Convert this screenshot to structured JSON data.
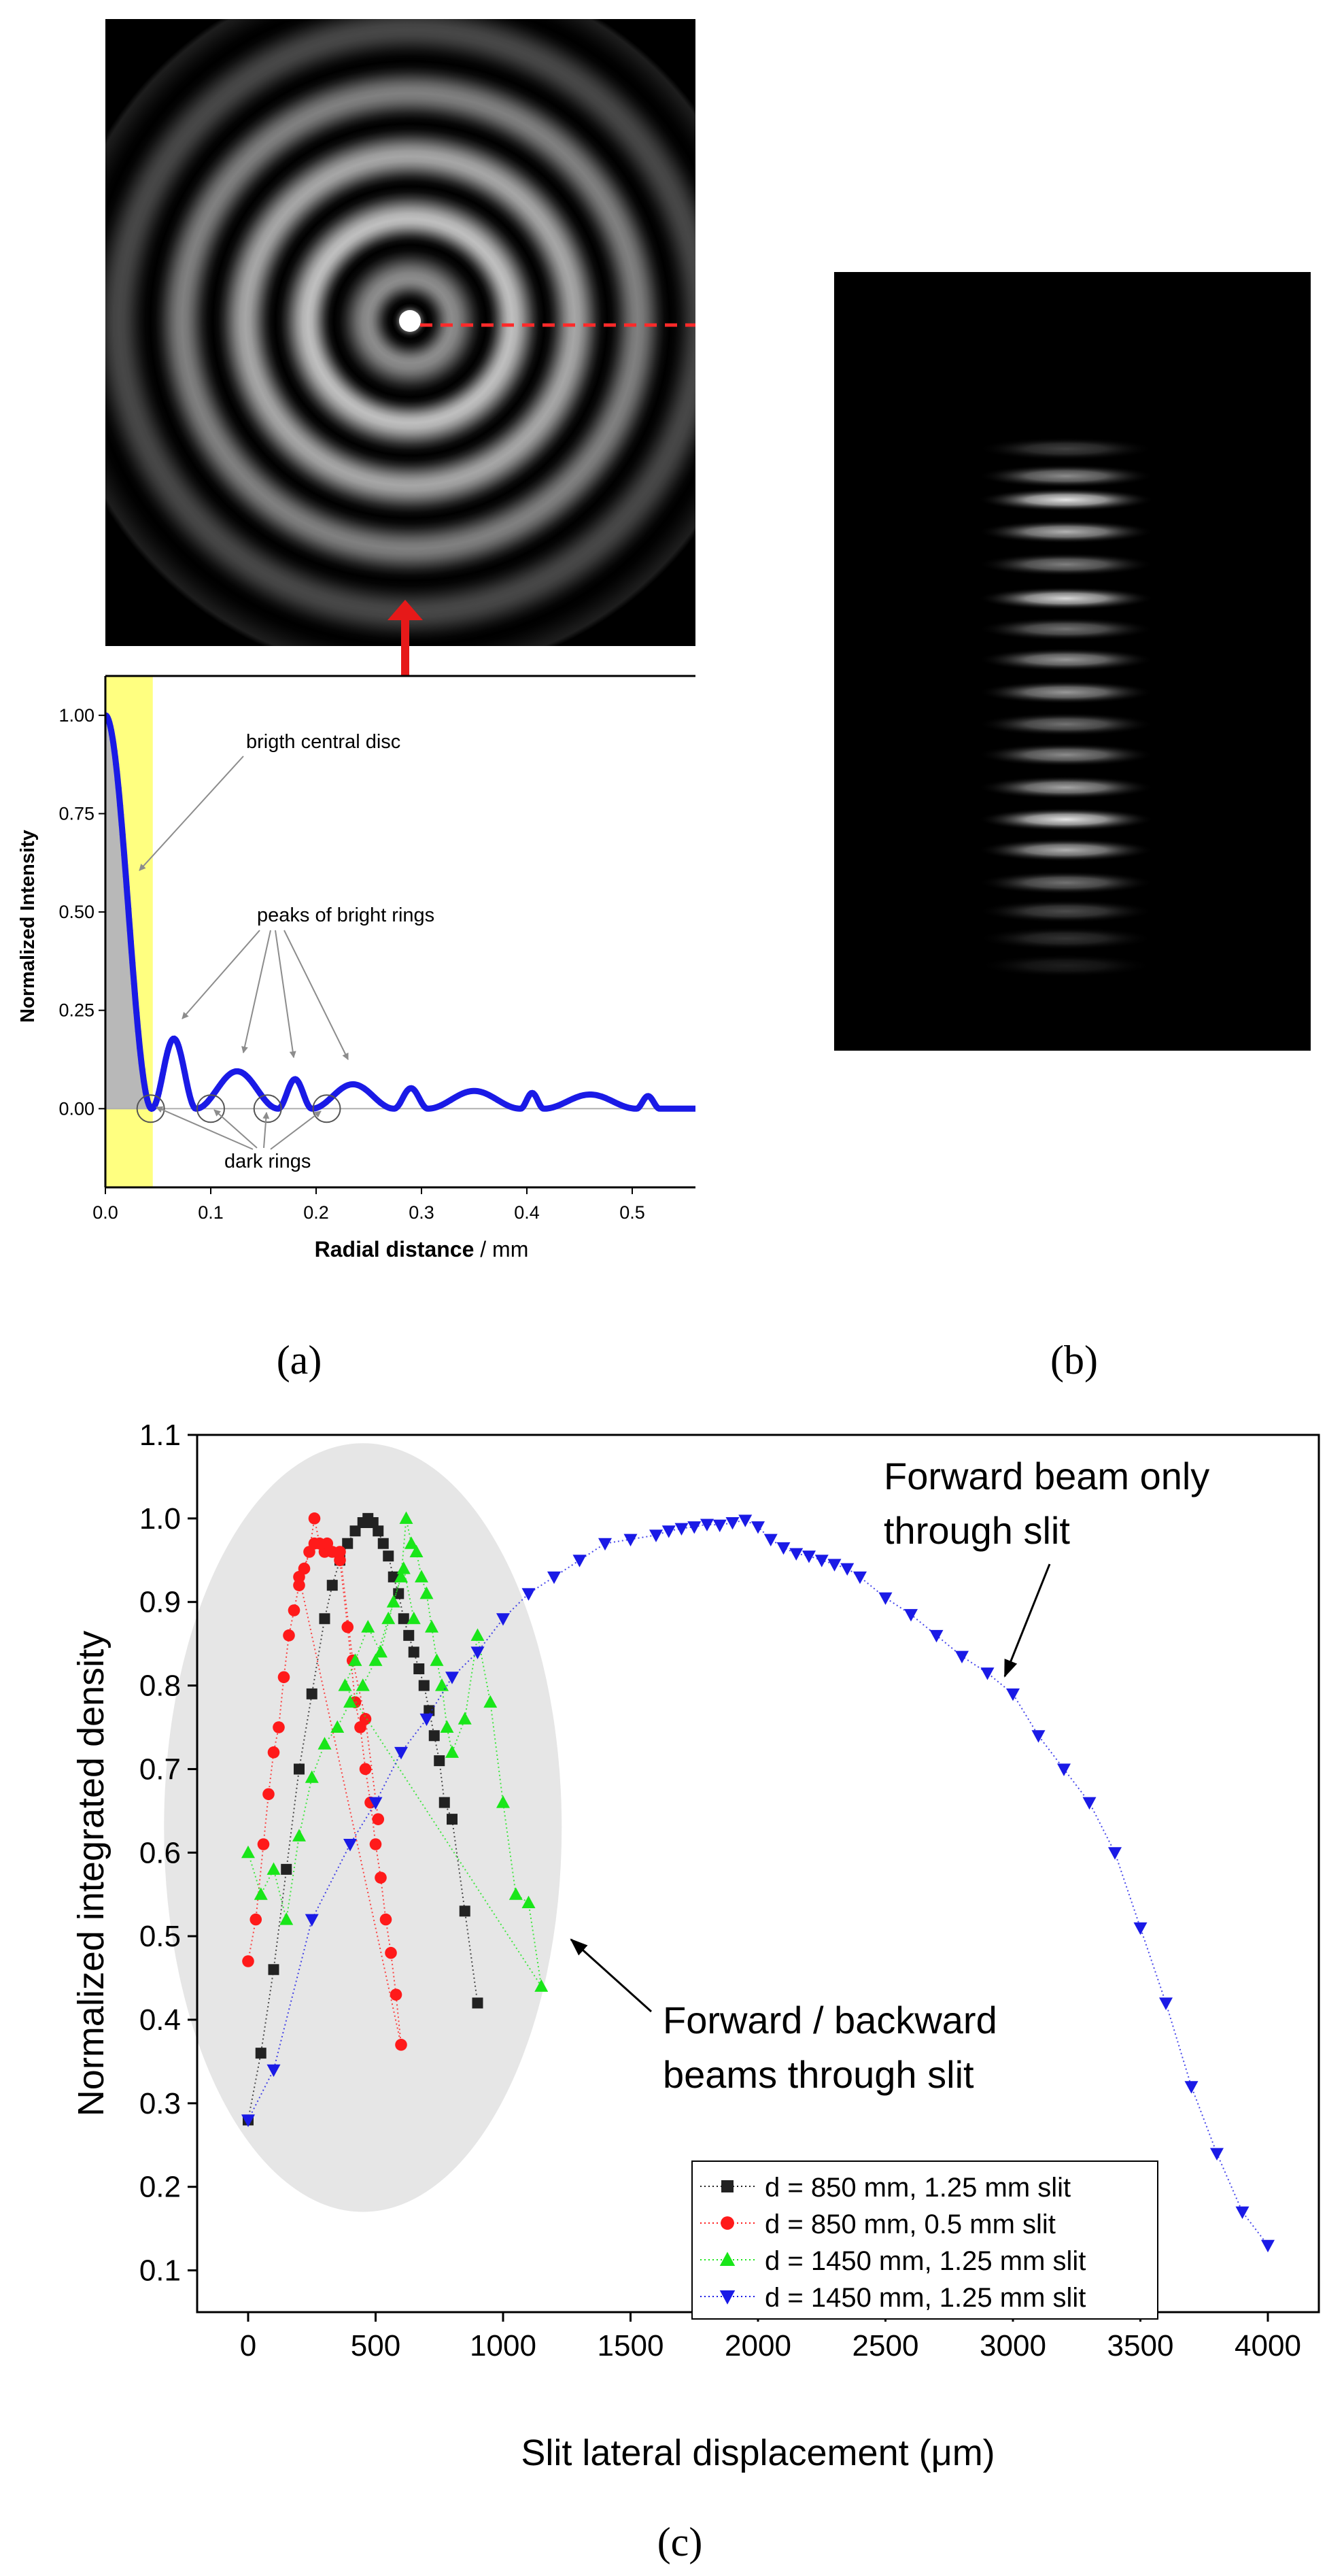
{
  "panel_labels": {
    "a": "(a)",
    "b": "(b)",
    "c": "(c)"
  },
  "colors": {
    "blue": "#1a1ae6",
    "red": "#ff1a1a",
    "green": "#19e619",
    "black": "#222222",
    "yellow": "#ffff80",
    "ellipse": "#e6e6e6",
    "arrow_red": "#e61919"
  },
  "chart_data": [
    {
      "type": "line",
      "panel": "(a)",
      "xlabel": "Radial distance",
      "xlabel_unit": " / mm",
      "ylabel": "Normalized Intensity",
      "xlim": [
        0,
        0.56
      ],
      "ylim": [
        -0.2,
        1.1
      ],
      "xticks": [
        0.0,
        0.1,
        0.2,
        0.3,
        0.4,
        0.5
      ],
      "xtick_labels": [
        "0.0",
        "0.1",
        "0.2",
        "0.3",
        "0.4",
        "0.5"
      ],
      "yticks": [
        0.0,
        0.25,
        0.5,
        0.75,
        1.0
      ],
      "ytick_labels": [
        "0.00",
        "0.25",
        "0.50",
        "0.75",
        "1.00"
      ],
      "highlight_xrange": [
        0.0,
        0.045
      ],
      "profile": {
        "first_zero": 0.044,
        "ring_peaks": [
          0.065,
          0.125,
          0.18,
          0.235,
          0.29,
          0.35,
          0.405,
          0.46,
          0.515
        ],
        "peak_values": [
          0.178,
          0.095,
          0.075,
          0.062,
          0.052,
          0.045,
          0.04,
          0.036,
          0.032
        ]
      },
      "dark_ring_x": [
        0.043,
        0.1,
        0.154,
        0.21
      ],
      "annotations": {
        "disc": "brigth central disc",
        "peaks": "peaks of bright rings",
        "dark": "dark rings"
      }
    },
    {
      "type": "scatter",
      "panel": "(c)",
      "xlabel": "Slit lateral displacement (μm)",
      "ylabel": "Normalized integrated density",
      "xlim": [
        -200,
        4200
      ],
      "ylim": [
        0.05,
        1.1
      ],
      "xticks": [
        0,
        500,
        1000,
        1500,
        2000,
        2500,
        3000,
        3500,
        4000
      ],
      "xtick_labels": [
        "0",
        "500",
        "1000",
        "1500",
        "2000",
        "2500",
        "3000",
        "3500",
        "4000"
      ],
      "yticks": [
        0.1,
        0.2,
        0.3,
        0.4,
        0.5,
        0.6,
        0.7,
        0.8,
        0.9,
        1.0,
        1.1
      ],
      "ytick_labels": [
        "0.1",
        "0.2",
        "0.3",
        "0.4",
        "0.5",
        "0.6",
        "0.7",
        "0.8",
        "0.9",
        "1.0",
        "1.1"
      ],
      "annotations": {
        "forward_line1": "Forward beam only",
        "forward_line2": "through slit",
        "fb_line1": "Forward / backward",
        "fb_line2": "beams through slit"
      },
      "series": [
        {
          "name": "d = 850 mm, 1.25 mm slit",
          "color": "#222222",
          "marker": "square",
          "x": [
            0,
            50,
            100,
            150,
            200,
            250,
            300,
            330,
            360,
            390,
            420,
            450,
            470,
            490,
            510,
            530,
            550,
            570,
            590,
            610,
            630,
            650,
            670,
            690,
            710,
            730,
            750,
            770,
            800,
            850,
            900
          ],
          "y": [
            0.28,
            0.36,
            0.46,
            0.58,
            0.7,
            0.79,
            0.88,
            0.92,
            0.95,
            0.97,
            0.985,
            0.995,
            1.0,
            0.995,
            0.985,
            0.97,
            0.955,
            0.93,
            0.91,
            0.88,
            0.86,
            0.84,
            0.82,
            0.8,
            0.77,
            0.74,
            0.71,
            0.66,
            0.64,
            0.53,
            0.42
          ]
        },
        {
          "name": "d = 850 mm, 0.5 mm slit",
          "color": "#ff1a1a",
          "marker": "circle",
          "x": [
            0,
            30,
            60,
            80,
            100,
            120,
            140,
            160,
            180,
            200,
            220,
            240,
            260,
            280,
            300,
            330,
            360,
            390,
            420,
            440,
            460,
            480,
            500,
            520,
            540,
            560,
            580,
            600,
            200,
            260,
            310,
            360,
            410,
            460,
            510
          ],
          "y": [
            0.47,
            0.52,
            0.61,
            0.67,
            0.72,
            0.75,
            0.81,
            0.86,
            0.89,
            0.92,
            0.94,
            0.96,
            1.0,
            0.97,
            0.96,
            0.96,
            0.95,
            0.87,
            0.78,
            0.75,
            0.7,
            0.66,
            0.61,
            0.57,
            0.52,
            0.48,
            0.43,
            0.37,
            0.93,
            0.97,
            0.97,
            0.96,
            0.83,
            0.76,
            0.64
          ]
        },
        {
          "name": "d = 1450 mm, 1.25 mm slit",
          "color": "#19e619",
          "marker": "triangle-up",
          "x": [
            0,
            50,
            100,
            150,
            200,
            250,
            300,
            350,
            400,
            450,
            500,
            550,
            600,
            620,
            640,
            660,
            680,
            700,
            720,
            740,
            760,
            780,
            800,
            850,
            900,
            950,
            1000,
            1050,
            1100,
            1150,
            380,
            420,
            470,
            520,
            570,
            610,
            650
          ],
          "y": [
            0.6,
            0.55,
            0.58,
            0.52,
            0.62,
            0.69,
            0.73,
            0.75,
            0.78,
            0.8,
            0.83,
            0.88,
            0.93,
            1.0,
            0.97,
            0.96,
            0.93,
            0.91,
            0.87,
            0.83,
            0.8,
            0.75,
            0.72,
            0.76,
            0.86,
            0.78,
            0.66,
            0.55,
            0.54,
            0.44,
            0.8,
            0.83,
            0.87,
            0.84,
            0.9,
            0.94,
            0.88
          ]
        },
        {
          "name": "d = 1450 mm, 1.25 mm slit",
          "color": "#1a1ae6",
          "marker": "triangle-down",
          "x": [
            0,
            100,
            250,
            400,
            500,
            600,
            700,
            800,
            900,
            1000,
            1100,
            1200,
            1300,
            1400,
            1500,
            1600,
            1650,
            1700,
            1750,
            1800,
            1850,
            1900,
            1950,
            2000,
            2050,
            2100,
            2150,
            2200,
            2250,
            2300,
            2350,
            2400,
            2500,
            2600,
            2700,
            2800,
            2900,
            3000,
            3100,
            3200,
            3300,
            3400,
            3500,
            3600,
            3700,
            3800,
            3900,
            4000
          ],
          "y": [
            0.28,
            0.34,
            0.52,
            0.61,
            0.66,
            0.72,
            0.76,
            0.81,
            0.84,
            0.88,
            0.91,
            0.93,
            0.95,
            0.97,
            0.975,
            0.98,
            0.985,
            0.988,
            0.99,
            0.993,
            0.992,
            0.995,
            0.998,
            0.99,
            0.975,
            0.965,
            0.958,
            0.955,
            0.95,
            0.945,
            0.94,
            0.93,
            0.905,
            0.885,
            0.86,
            0.835,
            0.815,
            0.79,
            0.74,
            0.7,
            0.66,
            0.6,
            0.51,
            0.42,
            0.32,
            0.24,
            0.17,
            0.13
          ]
        }
      ]
    }
  ]
}
